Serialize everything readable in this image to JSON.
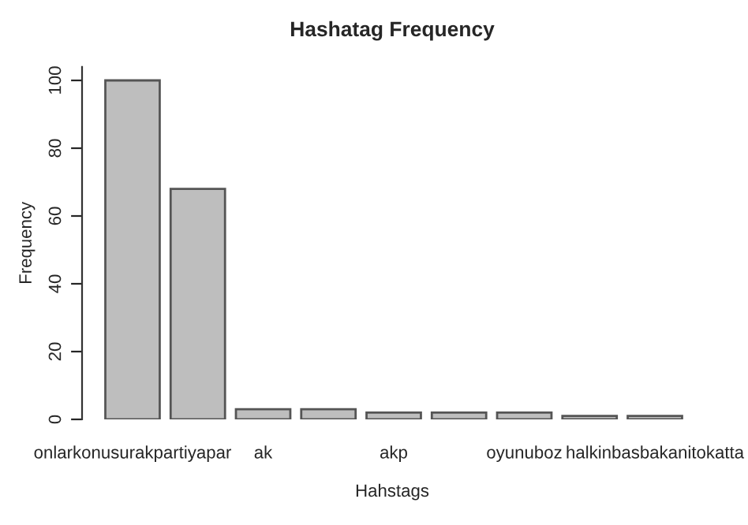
{
  "chart_data": {
    "type": "bar",
    "title": "Hashatag Frequency",
    "xlabel": "Hahstags",
    "ylabel": "Frequency",
    "categories": [
      "onlarkonusurakpartiyapar",
      null,
      "ak",
      null,
      "akp",
      null,
      "oyunuboz",
      null,
      "halkinbasbakanitokatta"
    ],
    "values": [
      100,
      68,
      3,
      3,
      2,
      2,
      2,
      1,
      1
    ],
    "color": "#bebebe",
    "ylim": [
      0,
      104
    ],
    "yticks": [
      0,
      20,
      40,
      60,
      80,
      100
    ],
    "grid": false
  }
}
